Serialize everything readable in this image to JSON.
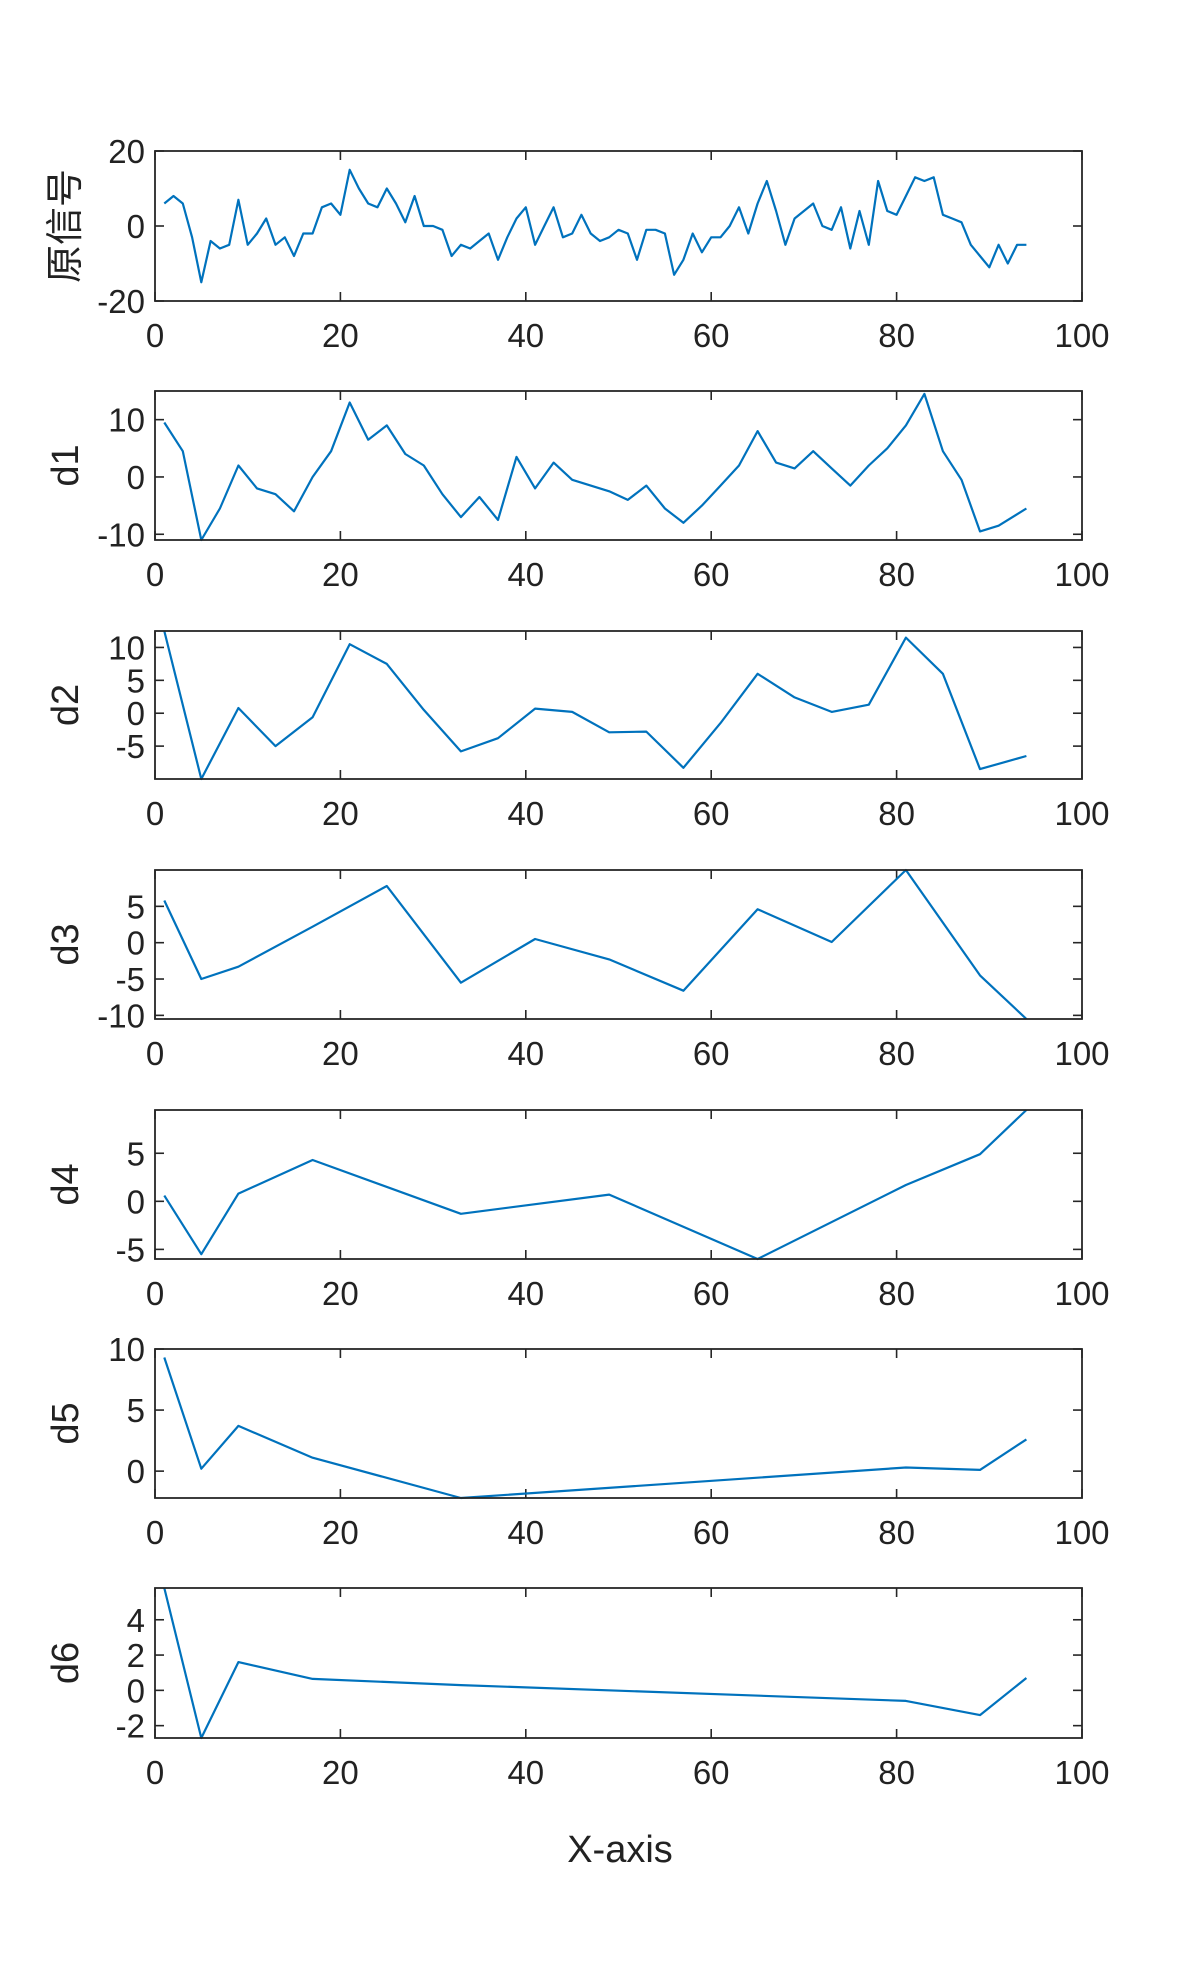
{
  "chart_data": [
    {
      "type": "line",
      "ylabel": "原信号",
      "xlim": [
        0,
        100
      ],
      "ylim": [
        -20,
        20
      ],
      "xticks": [
        0,
        20,
        40,
        60,
        80,
        100
      ],
      "yticks": [
        -20,
        0,
        20
      ],
      "line_color": "#0072BD",
      "x": [
        1,
        2,
        3,
        4,
        5,
        6,
        7,
        8,
        9,
        10,
        11,
        12,
        13,
        14,
        15,
        16,
        17,
        18,
        19,
        20,
        21,
        22,
        23,
        24,
        25,
        26,
        27,
        28,
        29,
        30,
        31,
        32,
        33,
        34,
        35,
        36,
        37,
        38,
        39,
        40,
        41,
        42,
        43,
        44,
        45,
        46,
        47,
        48,
        49,
        50,
        51,
        52,
        53,
        54,
        55,
        56,
        57,
        58,
        59,
        60,
        61,
        62,
        63,
        64,
        65,
        66,
        67,
        68,
        69,
        70,
        71,
        72,
        73,
        74,
        75,
        76,
        77,
        78,
        79,
        80,
        81,
        82,
        83,
        84,
        85,
        86,
        87,
        88,
        89,
        90,
        91,
        92,
        93,
        94
      ],
      "y": [
        6,
        8,
        6,
        -3,
        -15,
        -4,
        -6,
        -5,
        7,
        -5,
        -2,
        2,
        -5,
        -3,
        -8,
        -2,
        -2,
        5,
        6,
        3,
        15,
        10,
        6,
        5,
        10,
        6,
        1,
        8,
        0,
        0,
        -1,
        -8,
        -5,
        -6,
        -4,
        -2,
        -9,
        -3,
        2,
        5,
        -5,
        0,
        5,
        -3,
        -2,
        3,
        -2,
        -4,
        -3,
        -1,
        -2,
        -9,
        -1,
        -1,
        -2,
        -13,
        -9,
        -2,
        -7,
        -3,
        -3,
        0,
        5,
        -2,
        6,
        12,
        4,
        -5,
        2,
        4,
        6,
        0,
        -1,
        5,
        -6,
        4,
        -5,
        12,
        4,
        3,
        8,
        13,
        12,
        13,
        3,
        2,
        1,
        -5,
        -8,
        -11,
        -5,
        -10,
        -5,
        -5
      ]
    },
    {
      "type": "line",
      "ylabel": "d1",
      "xlim": [
        0,
        100
      ],
      "ylim": [
        -11,
        15
      ],
      "xticks": [
        0,
        20,
        40,
        60,
        80,
        100
      ],
      "yticks": [
        -10,
        0,
        10
      ],
      "line_color": "#0072BD",
      "x": [
        1,
        3,
        5,
        7,
        9,
        11,
        13,
        15,
        17,
        19,
        21,
        23,
        25,
        27,
        29,
        31,
        33,
        35,
        37,
        39,
        41,
        43,
        45,
        47,
        49,
        51,
        53,
        55,
        57,
        59,
        61,
        63,
        65,
        67,
        69,
        71,
        73,
        75,
        77,
        79,
        81,
        83,
        85,
        87,
        89,
        91,
        94
      ],
      "y": [
        9.5,
        4.5,
        -11,
        -5.5,
        2,
        -2,
        -3,
        -6,
        0,
        4.5,
        13,
        6.5,
        9,
        4,
        2,
        -3,
        -7,
        -3.5,
        -7.5,
        3.5,
        -2,
        2.5,
        -0.5,
        -1.5,
        -2.5,
        -4,
        -1.5,
        -5.5,
        -8,
        -5,
        -1.5,
        2,
        8,
        2.5,
        1.5,
        4.5,
        1.5,
        -1.5,
        2,
        5,
        9,
        14.5,
        4.5,
        -0.5,
        -9.5,
        -8.5,
        -5.5
      ]
    },
    {
      "type": "line",
      "ylabel": "d2",
      "xlim": [
        0,
        100
      ],
      "ylim": [
        -10,
        12.5
      ],
      "xticks": [
        0,
        20,
        40,
        60,
        80,
        100
      ],
      "yticks": [
        -5,
        0,
        5,
        10
      ],
      "line_color": "#0072BD",
      "x": [
        1,
        5,
        9,
        13,
        17,
        21,
        25,
        29,
        33,
        37,
        41,
        45,
        49,
        53,
        57,
        61,
        65,
        69,
        73,
        77,
        81,
        85,
        89,
        94
      ],
      "y": [
        12.5,
        -10,
        0.8,
        -5,
        -0.6,
        10.5,
        7.5,
        0.5,
        -5.8,
        -3.8,
        0.7,
        0.2,
        -2.9,
        -2.8,
        -8.3,
        -1.5,
        6,
        2.4,
        0.2,
        1.3,
        11.5,
        6,
        -8.5,
        -6.5
      ]
    },
    {
      "type": "line",
      "ylabel": "d3",
      "xlim": [
        0,
        100
      ],
      "ylim": [
        -10.5,
        10
      ],
      "xticks": [
        0,
        20,
        40,
        60,
        80,
        100
      ],
      "yticks": [
        -10,
        -5,
        0,
        5
      ],
      "line_color": "#0072BD",
      "x": [
        1,
        5,
        9,
        17,
        25,
        33,
        41,
        49,
        57,
        65,
        73,
        81,
        89,
        94
      ],
      "y": [
        5.8,
        -5,
        -3.3,
        2.2,
        7.8,
        -5.5,
        0.5,
        -2.3,
        -6.6,
        4.6,
        0.1,
        10,
        -4.5,
        -10.5
      ]
    },
    {
      "type": "line",
      "ylabel": "d4",
      "xlim": [
        0,
        100
      ],
      "ylim": [
        -6,
        9.5
      ],
      "xticks": [
        0,
        20,
        40,
        60,
        80,
        100
      ],
      "yticks": [
        -5,
        0,
        5
      ],
      "line_color": "#0072BD",
      "x": [
        1,
        5,
        9,
        17,
        33,
        49,
        65,
        81,
        89,
        94
      ],
      "y": [
        0.6,
        -5.5,
        0.8,
        4.3,
        -1.3,
        0.7,
        -6,
        1.7,
        4.9,
        9.5
      ]
    },
    {
      "type": "line",
      "ylabel": "d5",
      "xlim": [
        0,
        100
      ],
      "ylim": [
        -2.2,
        10
      ],
      "xticks": [
        0,
        20,
        40,
        60,
        80,
        100
      ],
      "yticks": [
        0,
        5,
        10
      ],
      "line_color": "#0072BD",
      "x": [
        1,
        5,
        9,
        17,
        33,
        81,
        89,
        94
      ],
      "y": [
        9.3,
        0.2,
        3.7,
        1.1,
        -2.2,
        0.3,
        0.1,
        2.6
      ]
    },
    {
      "type": "line",
      "ylabel": "d6",
      "xlim": [
        0,
        100
      ],
      "ylim": [
        -2.7,
        5.8
      ],
      "xticks": [
        0,
        20,
        40,
        60,
        80,
        100
      ],
      "yticks": [
        -2,
        0,
        2,
        4
      ],
      "line_color": "#0072BD",
      "x": [
        1,
        5,
        9,
        17,
        33,
        81,
        89,
        94
      ],
      "y": [
        5.8,
        -2.7,
        1.6,
        0.65,
        0.3,
        -0.6,
        -1.4,
        0.7
      ]
    }
  ],
  "xlabel": "X-axis"
}
